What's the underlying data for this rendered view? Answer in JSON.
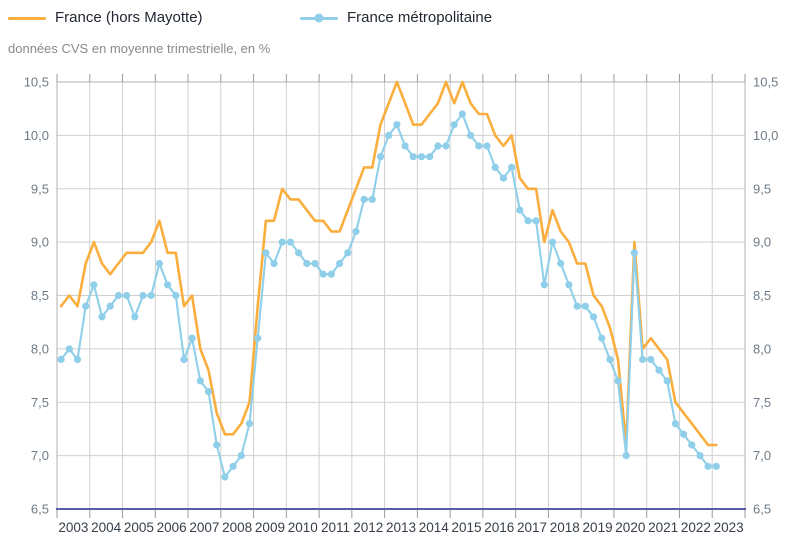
{
  "legend": [
    {
      "label": "France (hors Mayotte)"
    },
    {
      "label": "France métropolitaine"
    }
  ],
  "colors": {
    "grid": "#cfcfcf",
    "plot_border": "#b0b0b0",
    "bottom_axis": "#585BA7",
    "tick": "#999999",
    "y_labels": "#6E7B87",
    "year_labels": "#37404A",
    "legend_text": "#222833",
    "subtitle_text": "#8a8a8a",
    "background": "#ffffff"
  },
  "chart_data": {
    "type": "line",
    "title": "",
    "subtitle": "données CVS en moyenne trimestrielle, en %",
    "xlabel": "",
    "ylabel": "",
    "ylim": [
      6.5,
      10.5
    ],
    "ytick_step": 0.5,
    "y_label_format": "french-comma",
    "grid": true,
    "legend_position": "top",
    "x_unit": "quarter",
    "years": [
      2003,
      2004,
      2005,
      2006,
      2007,
      2008,
      2009,
      2010,
      2011,
      2012,
      2013,
      2014,
      2015,
      2016,
      2017,
      2018,
      2019,
      2020,
      2021,
      2022,
      2023
    ],
    "series": [
      {
        "name": "France (hors Mayotte)",
        "color": "#FAAE3D",
        "markers": false,
        "line_width": 2.6,
        "values": [
          8.4,
          8.5,
          8.4,
          8.8,
          9.0,
          8.8,
          8.7,
          8.8,
          8.9,
          8.9,
          8.9,
          9.0,
          9.2,
          8.9,
          8.9,
          8.4,
          8.5,
          8.0,
          7.8,
          7.4,
          7.2,
          7.2,
          7.3,
          7.5,
          8.4,
          9.2,
          9.2,
          9.5,
          9.4,
          9.4,
          9.3,
          9.2,
          9.2,
          9.1,
          9.1,
          9.3,
          9.5,
          9.7,
          9.7,
          10.1,
          10.3,
          10.5,
          10.3,
          10.1,
          10.1,
          10.2,
          10.3,
          10.5,
          10.3,
          10.5,
          10.3,
          10.2,
          10.2,
          10.0,
          9.9,
          10.0,
          9.6,
          9.5,
          9.5,
          9.0,
          9.3,
          9.1,
          9.0,
          8.8,
          8.8,
          8.5,
          8.4,
          8.2,
          7.9,
          7.1,
          9.0,
          8.0,
          8.1,
          8.0,
          7.9,
          7.5,
          7.4,
          7.3,
          7.2,
          7.1,
          7.1
        ]
      },
      {
        "name": "France métropolitaine",
        "color": "#8FCFEA",
        "markers": true,
        "marker_radius": 3.6,
        "line_width": 2.1,
        "values": [
          7.9,
          8.0,
          7.9,
          8.4,
          8.6,
          8.3,
          8.4,
          8.5,
          8.5,
          8.3,
          8.5,
          8.5,
          8.8,
          8.6,
          8.5,
          7.9,
          8.1,
          7.7,
          7.6,
          7.1,
          6.8,
          6.9,
          7.0,
          7.3,
          8.1,
          8.9,
          8.8,
          9.0,
          9.0,
          8.9,
          8.8,
          8.8,
          8.7,
          8.7,
          8.8,
          8.9,
          9.1,
          9.4,
          9.4,
          9.8,
          10.0,
          10.1,
          9.9,
          9.8,
          9.8,
          9.8,
          9.9,
          9.9,
          10.1,
          10.2,
          10.0,
          9.9,
          9.9,
          9.7,
          9.6,
          9.7,
          9.3,
          9.2,
          9.2,
          8.6,
          9.0,
          8.8,
          8.6,
          8.4,
          8.4,
          8.3,
          8.1,
          7.9,
          7.7,
          7.0,
          8.9,
          7.9,
          7.9,
          7.8,
          7.7,
          7.3,
          7.2,
          7.1,
          7.0,
          6.9,
          6.9
        ]
      }
    ]
  }
}
